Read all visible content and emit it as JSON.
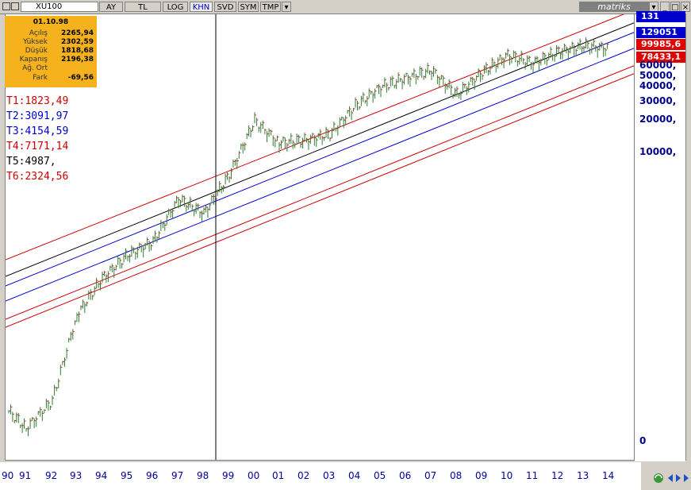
{
  "toolbar": {
    "symbol": "XU100",
    "buttons": [
      "AY",
      "TL",
      "LOG",
      "KHN",
      "SVD",
      "SYM",
      "TMP"
    ],
    "active": "KHN",
    "brand": "matriks"
  },
  "info_panel": {
    "date": "01.10.98",
    "rows": [
      {
        "label": "Açılış",
        "value": "2265,94"
      },
      {
        "label": "Yüksek",
        "value": "2302,59"
      },
      {
        "label": "Düşük",
        "value": "1818,68"
      },
      {
        "label": "Kapanış",
        "value": "2196,38"
      },
      {
        "label": "Ağ. Ort",
        "value": ""
      },
      {
        "label": "Fark",
        "value": "-69,56"
      }
    ]
  },
  "trend_labels": [
    {
      "text": "T1:1823,49",
      "color": "#cc0000"
    },
    {
      "text": "T2:3091,97",
      "color": "#0000cc"
    },
    {
      "text": "T3:4154,59",
      "color": "#0000cc"
    },
    {
      "text": "T4:7171,14",
      "color": "#cc0000"
    },
    {
      "text": "T5:4987,",
      "color": "#000000"
    },
    {
      "text": "T6:2324,56",
      "color": "#cc0000"
    }
  ],
  "price_boxes": [
    {
      "text": "131",
      "color": "#0000cc"
    },
    {
      "text": "129051",
      "color": "#0000cc"
    },
    {
      "text": "99985,6",
      "color": "#e00000"
    },
    {
      "text": "78433,1",
      "color": "#e00000"
    }
  ],
  "chart_data": {
    "type": "line",
    "title": "",
    "scale": "log",
    "y_ticks": [
      "60000,",
      "50000,",
      "40000,",
      "30000,",
      "20000,",
      "10000,",
      "0"
    ],
    "x_ticks": [
      "90",
      "91",
      "92",
      "93",
      "94",
      "95",
      "96",
      "97",
      "98",
      "99",
      "00",
      "01",
      "02",
      "03",
      "04",
      "05",
      "06",
      "07",
      "08",
      "09",
      "10",
      "11",
      "12",
      "13",
      "14"
    ],
    "series": [
      {
        "x": [
          "90",
          "91",
          "92",
          "93",
          "94",
          "95",
          "96",
          "97",
          "98",
          "99",
          "00",
          "01",
          "02",
          "03",
          "04",
          "05",
          "06",
          "07",
          "08",
          "09",
          "10",
          "11",
          "12",
          "13",
          "14"
        ],
        "values": [
          32,
          22,
          40,
          250,
          550,
          900,
          1200,
          3000,
          2200,
          5000,
          16000,
          10000,
          10500,
          12000,
          22000,
          33000,
          40000,
          47000,
          28000,
          45000,
          65000,
          55000,
          70000,
          80000,
          75000
        ]
      }
    ],
    "channel_colors": [
      "#cc0000",
      "#000000",
      "#0000cc",
      "#0000cc",
      "#cc0000",
      "#cc0000"
    ],
    "cursor_x": "98",
    "grid": false
  }
}
